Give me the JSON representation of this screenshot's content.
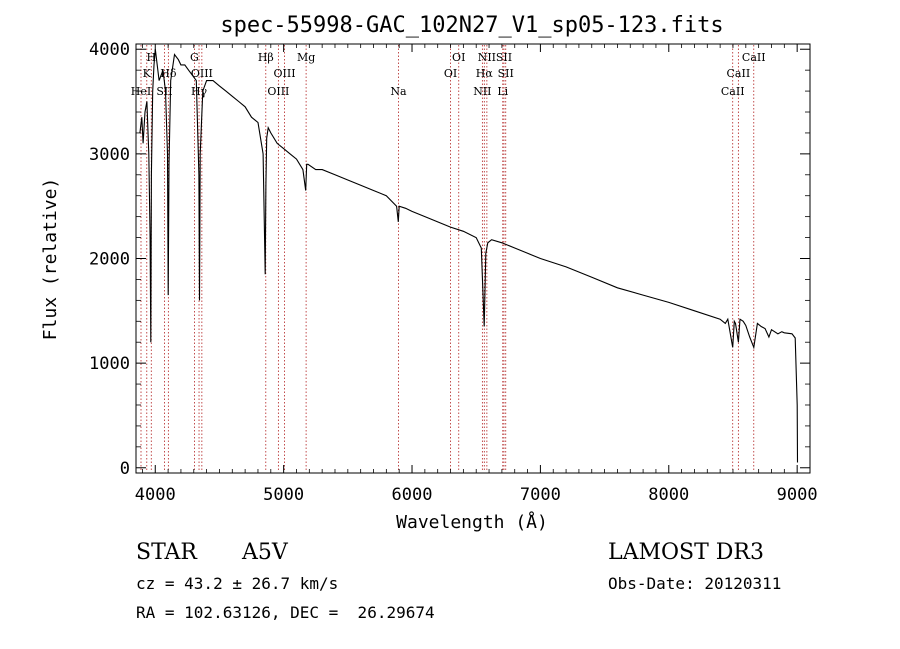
{
  "chart_data": {
    "type": "line",
    "title": "spec-55998-GAC_102N27_V1_sp05-123.fits",
    "xlabel": "Wavelength (Å)",
    "ylabel": "Flux (relative)",
    "xlim": [
      3850,
      9100
    ],
    "ylim": [
      -50,
      4050
    ],
    "x_ticks": [
      4000,
      5000,
      6000,
      7000,
      8000,
      9000
    ],
    "y_ticks": [
      0,
      1000,
      2000,
      3000,
      4000
    ],
    "grid": false,
    "series": [
      {
        "name": "spectrum",
        "x": [
          3880,
          3895,
          3905,
          3920,
          3935,
          3950,
          3960,
          3965,
          3970,
          3980,
          3990,
          4000,
          4030,
          4060,
          4080,
          4095,
          4101,
          4107,
          4120,
          4150,
          4180,
          4200,
          4230,
          4260,
          4290,
          4320,
          4340,
          4345,
          4350,
          4370,
          4400,
          4450,
          4500,
          4550,
          4600,
          4650,
          4700,
          4750,
          4800,
          4840,
          4856,
          4862,
          4868,
          4880,
          4900,
          4950,
          5000,
          5050,
          5100,
          5150,
          5172,
          5180,
          5190,
          5250,
          5300,
          5400,
          5500,
          5600,
          5700,
          5800,
          5880,
          5893,
          5900,
          5950,
          6000,
          6100,
          6200,
          6300,
          6400,
          6500,
          6540,
          6562,
          6575,
          6590,
          6620,
          6700,
          6800,
          6900,
          7000,
          7200,
          7400,
          7600,
          7800,
          8000,
          8200,
          8400,
          8440,
          8460,
          8498,
          8510,
          8520,
          8542,
          8555,
          8580,
          8600,
          8630,
          8662,
          8690,
          8720,
          8750,
          8780,
          8800,
          8850,
          8880,
          8900,
          8960,
          8985,
          9000,
          9003
        ],
        "values": [
          3200,
          3350,
          3100,
          3400,
          3500,
          3000,
          2200,
          1200,
          2800,
          3600,
          3850,
          4000,
          3700,
          3800,
          3600,
          3000,
          1650,
          2900,
          3700,
          3950,
          3900,
          3850,
          3850,
          3800,
          3750,
          3700,
          2800,
          1600,
          3000,
          3600,
          3700,
          3700,
          3650,
          3600,
          3550,
          3500,
          3450,
          3350,
          3300,
          3000,
          1850,
          2700,
          3150,
          3250,
          3200,
          3100,
          3050,
          3000,
          2950,
          2850,
          2650,
          2900,
          2900,
          2850,
          2850,
          2800,
          2750,
          2700,
          2650,
          2600,
          2500,
          2350,
          2500,
          2480,
          2450,
          2400,
          2350,
          2300,
          2260,
          2200,
          2100,
          1350,
          2050,
          2150,
          2180,
          2150,
          2100,
          2050,
          2000,
          1920,
          1820,
          1720,
          1650,
          1580,
          1500,
          1420,
          1380,
          1420,
          1150,
          1400,
          1380,
          1200,
          1420,
          1400,
          1360,
          1250,
          1150,
          1380,
          1350,
          1330,
          1250,
          1320,
          1280,
          1300,
          1290,
          1280,
          1240,
          600,
          50
        ]
      }
    ],
    "lines": [
      {
        "wavelength": 3889,
        "label": "HeI",
        "row": 3
      },
      {
        "wavelength": 3934,
        "label": "K",
        "row": 2
      },
      {
        "wavelength": 3969,
        "label": "H",
        "row": 1
      },
      {
        "wavelength": 4072,
        "label": "SII",
        "row": 3
      },
      {
        "wavelength": 4102,
        "label": "Hδ",
        "row": 2
      },
      {
        "wavelength": 4305,
        "label": "G",
        "row": 1
      },
      {
        "wavelength": 4341,
        "label": "Hγ",
        "row": 3
      },
      {
        "wavelength": 4363,
        "label": "OIII",
        "row": 2
      },
      {
        "wavelength": 4861,
        "label": "Hβ",
        "row": 1
      },
      {
        "wavelength": 4959,
        "label": "OIII",
        "row": 3
      },
      {
        "wavelength": 5007,
        "label": "OIII",
        "row": 2
      },
      {
        "wavelength": 5175,
        "label": "Mg",
        "row": 1
      },
      {
        "wavelength": 5894,
        "label": "Na",
        "row": 3
      },
      {
        "wavelength": 6300,
        "label": "OI",
        "row": 2
      },
      {
        "wavelength": 6364,
        "label": "OI",
        "row": 1
      },
      {
        "wavelength": 6548,
        "label": "NII",
        "row": 3
      },
      {
        "wavelength": 6563,
        "label": "Hα",
        "row": 2
      },
      {
        "wavelength": 6583,
        "label": "NII",
        "row": 1
      },
      {
        "wavelength": 6707,
        "label": "Li",
        "row": 3
      },
      {
        "wavelength": 6716,
        "label": "SII",
        "row": 1
      },
      {
        "wavelength": 6730,
        "label": "SII",
        "row": 2
      },
      {
        "wavelength": 8498,
        "label": "CaII",
        "row": 3
      },
      {
        "wavelength": 8542,
        "label": "CaII",
        "row": 2
      },
      {
        "wavelength": 8662,
        "label": "CaII",
        "row": 1
      }
    ]
  },
  "info": {
    "object_type": "STAR",
    "subclass": "A5V",
    "redshift": "cz = 43.2 ± 26.7 km/s",
    "coords": "RA = 102.63126, DEC =  26.29674",
    "survey": "LAMOST DR3",
    "obs_date": "Obs-Date: 20120311"
  },
  "colors": {
    "line_marker": "#b22222",
    "spectrum": "#000000",
    "axis": "#000000"
  }
}
